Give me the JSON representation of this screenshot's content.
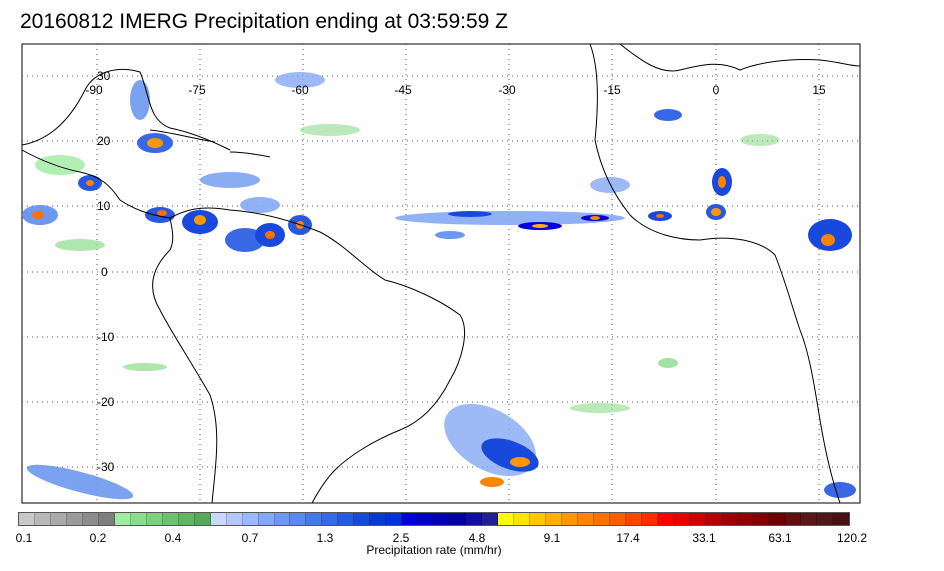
{
  "title": "20160812 IMERG Precipitation ending at 03:59:59 Z",
  "map": {
    "longitude_labels": [
      "-90",
      "-75",
      "-60",
      "-45",
      "-30",
      "-15",
      "0",
      "15"
    ],
    "latitude_labels": [
      "30",
      "20",
      "10",
      "0",
      "-10",
      "-20",
      "-30"
    ],
    "grid": "dotted",
    "land_outline_color": "#000000"
  },
  "colorbar": {
    "tick_labels": [
      "0.1",
      "0.2",
      "0.4",
      "0.7",
      "1.3",
      "2.5",
      "4.8",
      "9.1",
      "17.4",
      "33.1",
      "63.1",
      "120.2"
    ],
    "label": "Precipitation rate (mm/hr)",
    "colors": [
      "#c8c8c8",
      "#b8b8b8",
      "#aaaaaa",
      "#9b9b9b",
      "#8c8c8c",
      "#7e7e7e",
      "#a0eba0",
      "#8ddb8d",
      "#7fcf7f",
      "#70c070",
      "#64b264",
      "#5aa65a",
      "#c8d8ff",
      "#b4c8ff",
      "#9cb8f8",
      "#84a8f4",
      "#6c98f0",
      "#5a88ec",
      "#4878e8",
      "#3868e4",
      "#2858e0",
      "#1848dc",
      "#0838d8",
      "#0030e0",
      "#0000d8",
      "#0000c8",
      "#0000b8",
      "#0000a8",
      "#1010a0",
      "#202090",
      "#ffff00",
      "#ffe400",
      "#ffc800",
      "#ffb000",
      "#ff9800",
      "#ff8400",
      "#ff7000",
      "#ff5c00",
      "#ff4400",
      "#ff2c00",
      "#ff0000",
      "#e80000",
      "#d00000",
      "#b80000",
      "#a00000",
      "#900000",
      "#800000",
      "#700000",
      "#601010",
      "#581818",
      "#501818",
      "#481010"
    ]
  }
}
